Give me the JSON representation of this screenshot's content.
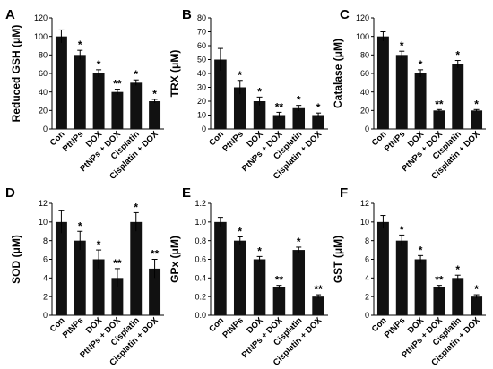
{
  "figure": {
    "categories": [
      "Con",
      "PtNPs",
      "DOX",
      "PtNPs + DOX",
      "Cisplatin",
      "Cisplatin + DOX"
    ],
    "colors": {
      "bar": "#111111",
      "axis": "#000000",
      "text": "#000000",
      "panel_label": "#000000"
    }
  },
  "chart_data": [
    {
      "panel": "A",
      "type": "bar",
      "ylabel": "Reduced GSH (μM)",
      "ylim": [
        0,
        120
      ],
      "yticks": [
        0,
        20,
        40,
        60,
        80,
        100,
        120
      ],
      "categories": [
        "Con",
        "PtNPs",
        "DOX",
        "PtNPs + DOX",
        "Cisplatin",
        "Cisplatin + DOX"
      ],
      "values": [
        100,
        80,
        60,
        40,
        50,
        30
      ],
      "errors": [
        7,
        5,
        4,
        3,
        3,
        2
      ],
      "annotations": [
        "",
        "*",
        "*",
        "**",
        "*",
        "*"
      ]
    },
    {
      "panel": "B",
      "type": "bar",
      "ylabel": "TRX (μM)",
      "ylim": [
        0,
        80
      ],
      "yticks": [
        0,
        10,
        20,
        30,
        40,
        50,
        60,
        70,
        80
      ],
      "categories": [
        "Con",
        "PtNPs",
        "DOX",
        "PtNPs + DOX",
        "Cisplatin",
        "Cisplatin + DOX"
      ],
      "values": [
        50,
        30,
        20,
        10,
        15,
        10
      ],
      "errors": [
        8,
        5,
        3,
        2,
        2,
        1.5
      ],
      "annotations": [
        "",
        "*",
        "*",
        "**",
        "*",
        "*"
      ]
    },
    {
      "panel": "C",
      "type": "bar",
      "ylabel": "Catalase (μM)",
      "ylim": [
        0,
        120
      ],
      "yticks": [
        0,
        20,
        40,
        60,
        80,
        100,
        120
      ],
      "categories": [
        "Con",
        "PtNPs",
        "DOX",
        "PtNPs + DOX",
        "Cisplatin",
        "Cisplatin + DOX"
      ],
      "values": [
        100,
        80,
        60,
        20,
        70,
        20
      ],
      "errors": [
        5,
        4,
        4,
        1,
        4,
        1
      ],
      "annotations": [
        "",
        "*",
        "*",
        "**",
        "*",
        "*"
      ]
    },
    {
      "panel": "D",
      "type": "bar",
      "ylabel": "SOD (μM)",
      "ylim": [
        0,
        12
      ],
      "yticks": [
        0,
        2,
        4,
        6,
        8,
        10,
        12
      ],
      "categories": [
        "Con",
        "PtNPs",
        "DOX",
        "PtNPs + DOX",
        "Cisplatin",
        "Cisplatin + DOX"
      ],
      "values": [
        10,
        8,
        6,
        4,
        10,
        5
      ],
      "errors": [
        1.2,
        1,
        1,
        1,
        1,
        1
      ],
      "annotations": [
        "",
        "*",
        "*",
        "**",
        "*",
        "**"
      ]
    },
    {
      "panel": "E",
      "type": "bar",
      "ylabel": "GPx (μM)",
      "ylim": [
        0,
        1.2
      ],
      "yticks": [
        0,
        0.2,
        0.4,
        0.6,
        0.8,
        1.0,
        1.2
      ],
      "categories": [
        "Con",
        "PtNPs",
        "DOX",
        "PtNPs + DOX",
        "Cisplatin",
        "Cisplatin + DOX"
      ],
      "values": [
        1.0,
        0.8,
        0.6,
        0.3,
        0.7,
        0.2
      ],
      "errors": [
        0.05,
        0.04,
        0.03,
        0.02,
        0.03,
        0.02
      ],
      "annotations": [
        "",
        "*",
        "*",
        "**",
        "*",
        "**"
      ]
    },
    {
      "panel": "F",
      "type": "bar",
      "ylabel": "GST (μM)",
      "ylim": [
        0,
        12
      ],
      "yticks": [
        0,
        2,
        4,
        6,
        8,
        10,
        12
      ],
      "categories": [
        "Con",
        "PtNPs",
        "DOX",
        "PtNPs + DOX",
        "Cisplatin",
        "Cisplatin + DOX"
      ],
      "values": [
        10,
        8,
        6,
        3,
        4,
        2
      ],
      "errors": [
        0.7,
        0.6,
        0.4,
        0.2,
        0.3,
        0.2
      ],
      "annotations": [
        "",
        "*",
        "*",
        "**",
        "*",
        "*"
      ]
    }
  ]
}
